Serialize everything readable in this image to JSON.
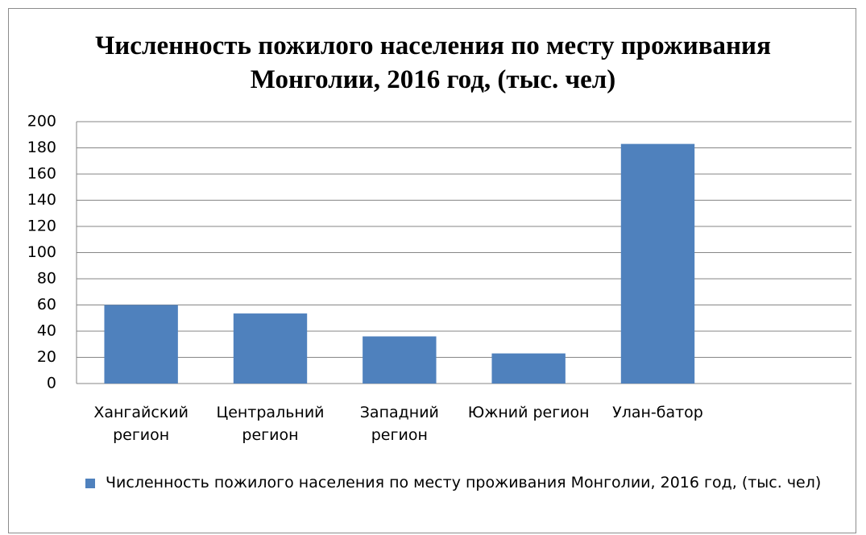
{
  "chart_data": {
    "type": "bar",
    "title": "Численность пожилого населения по месту проживания Монголии, 2016 год, (тыс. чел)",
    "categories": [
      "Хангайский регион",
      "Центральний регион",
      "Западний регион",
      "Южний регион",
      "Улан-батор",
      null
    ],
    "series": [
      {
        "name": "Численность пожилого населения по месту проживания Монголии, 2016 год, (тыс. чел)",
        "color": "#4f81bd",
        "values": [
          60,
          53.5,
          36,
          23,
          183,
          null
        ]
      }
    ],
    "ylim": [
      0,
      200
    ],
    "yticks": [
      0,
      20,
      40,
      60,
      80,
      100,
      120,
      140,
      160,
      180,
      200
    ],
    "grid": true,
    "legend": "bottom"
  }
}
